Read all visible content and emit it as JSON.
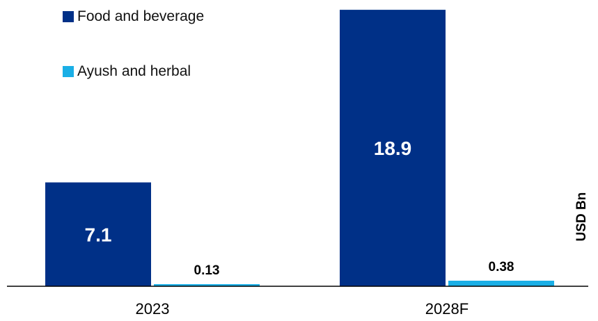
{
  "chart_data": {
    "type": "bar",
    "categories": [
      "2023",
      "2028F"
    ],
    "series": [
      {
        "name": "Food and beverage",
        "values": [
          7.1,
          18.9
        ],
        "color": "#003087"
      },
      {
        "name": "Ayush and herbal",
        "values": [
          0.13,
          0.38
        ],
        "color": "#1aafe6"
      }
    ],
    "value_labels": [
      [
        "7.1",
        "18.9"
      ],
      [
        "0.13",
        "0.38"
      ]
    ],
    "unit_label": "USD Bn",
    "ylim": [
      0,
      19
    ],
    "grid": false,
    "legend_position": "top-left"
  }
}
